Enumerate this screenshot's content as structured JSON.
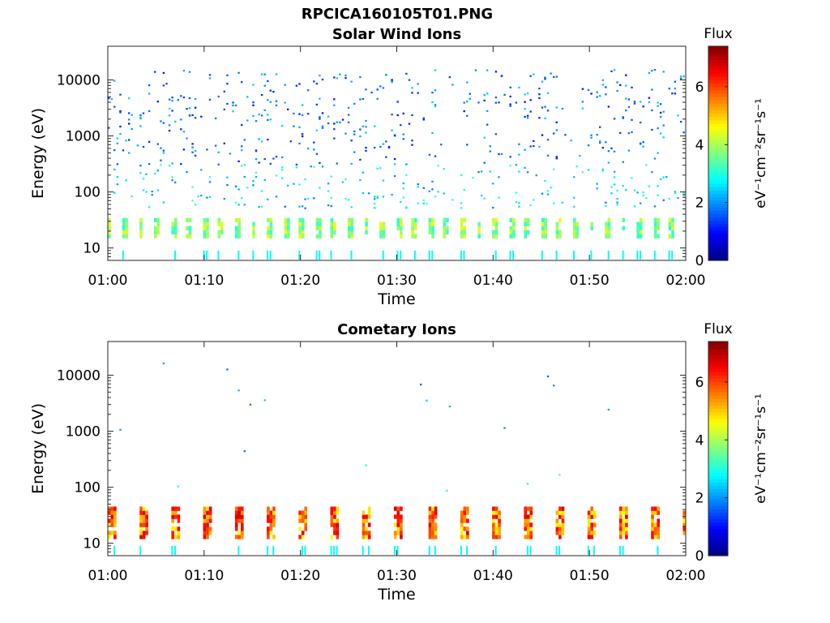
{
  "figure": {
    "filename": "RPCICA160105T01.PNG"
  },
  "chart_data": [
    {
      "type": "heatmap",
      "title": "Solar Wind Ions",
      "xlabel": "Time",
      "ylabel": "Energy (eV)",
      "x_ticks": [
        "01:00",
        "01:10",
        "01:20",
        "01:30",
        "01:40",
        "01:50",
        "02:00"
      ],
      "x_range_min": [
        0,
        60
      ],
      "y_scale": "log",
      "y_ticks": [
        10,
        100,
        1000,
        10000
      ],
      "y_tick_labels": [
        "10",
        "100",
        "1000",
        "10000"
      ],
      "ylim": [
        6,
        40000
      ],
      "colorbar": {
        "label": "Flux",
        "unit": "eV⁻¹cm⁻²sr⁻¹s⁻¹",
        "ticks": [
          0,
          2,
          4,
          6
        ],
        "range": [
          0,
          7.4
        ],
        "colormap": "jet"
      },
      "series": [
        {
          "name": "",
          "energy_band_eV": [
            15,
            30
          ],
          "typical_flux": [
            3,
            4.5
          ],
          "pattern": "repeating bursts ~every 1.7 min"
        },
        {
          "name": "",
          "energy_band_eV": [
            50,
            15000
          ],
          "typical_flux": [
            1,
            2.5
          ],
          "pattern": "sparse scattered pixels"
        }
      ]
    },
    {
      "type": "heatmap",
      "title": "Cometary Ions",
      "xlabel": "Time",
      "ylabel": "Energy (eV)",
      "x_ticks": [
        "01:00",
        "01:10",
        "01:20",
        "01:30",
        "01:40",
        "01:50",
        "02:00"
      ],
      "x_range_min": [
        0,
        60
      ],
      "y_scale": "log",
      "y_ticks": [
        10,
        100,
        1000,
        10000
      ],
      "y_tick_labels": [
        "10",
        "100",
        "1000",
        "10000"
      ],
      "ylim": [
        6,
        40000
      ],
      "colorbar": {
        "label": "Flux",
        "unit": "eV⁻¹cm⁻²sr⁻¹s⁻¹",
        "ticks": [
          0,
          2,
          4,
          6
        ],
        "range": [
          0,
          7.4
        ],
        "colormap": "jet"
      },
      "series": [
        {
          "name": "",
          "energy_band_eV": [
            12,
            40
          ],
          "typical_flux": [
            4.5,
            6.8
          ],
          "pattern": "periodic bursts ~every 3.3 min"
        },
        {
          "name": "",
          "energy_band_eV": [
            60,
            25000
          ],
          "typical_flux": [
            1.5,
            2.5
          ],
          "pattern": "few isolated pixels"
        }
      ]
    }
  ]
}
